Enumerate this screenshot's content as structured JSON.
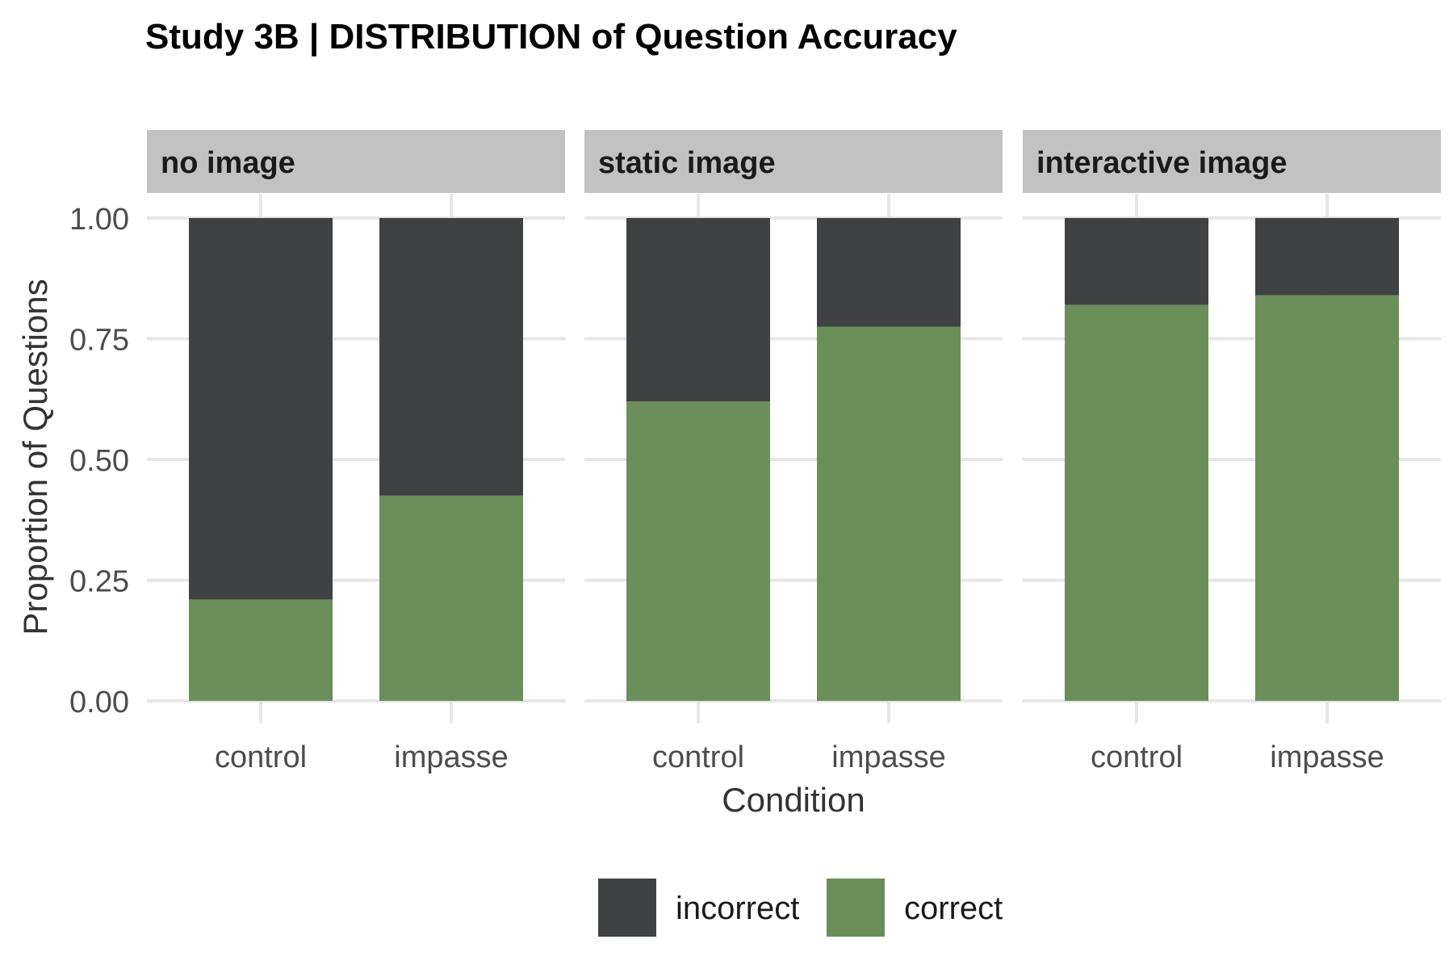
{
  "chart_data": {
    "type": "bar",
    "stacked": true,
    "title": "Study 3B | DISTRIBUTION of Question Accuracy",
    "xlabel": "Condition",
    "ylabel": "Proportion of Questions",
    "ylim": [
      0,
      1
    ],
    "yticks": [
      "0.00",
      "0.25",
      "0.50",
      "0.75",
      "1.00"
    ],
    "categories": [
      "control",
      "impasse"
    ],
    "facets": [
      "no image",
      "static image",
      "interactive image"
    ],
    "series": [
      {
        "name": "incorrect",
        "color": "#404143",
        "values": [
          [
            0.79,
            0.575
          ],
          [
            0.38,
            0.225
          ],
          [
            0.18,
            0.16
          ]
        ]
      },
      {
        "name": "correct",
        "color": "#6b8f5a",
        "values": [
          [
            0.21,
            0.425
          ],
          [
            0.62,
            0.775
          ],
          [
            0.82,
            0.84
          ]
        ]
      }
    ],
    "legend": {
      "position": "bottom",
      "items": [
        "incorrect",
        "correct"
      ]
    },
    "grid": true
  }
}
